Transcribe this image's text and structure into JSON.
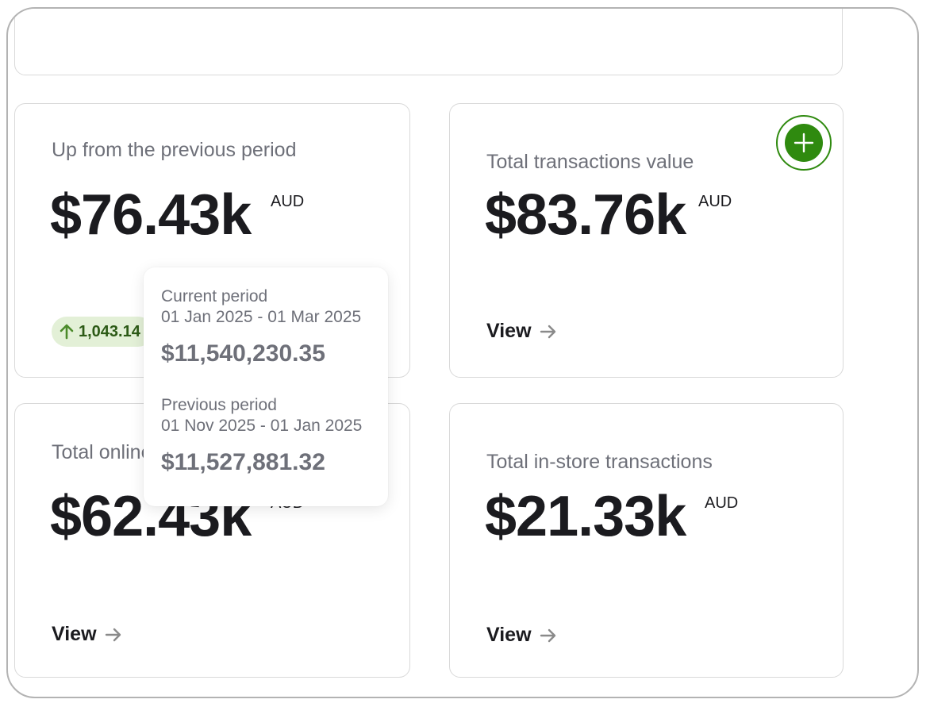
{
  "cards": {
    "up_from_previous": {
      "label": "Up from the previous period",
      "amount": "$76.43k",
      "currency": "AUD",
      "change_badge": "1,043.14"
    },
    "total_transactions": {
      "label": "Total transactions value",
      "amount": "$83.76k",
      "currency": "AUD",
      "view_label": "View"
    },
    "total_online": {
      "label": "Total online transactions",
      "amount": "$62.43k",
      "currency": "AUD",
      "view_label": "View"
    },
    "total_instore": {
      "label": "Total in-store transactions",
      "amount": "$21.33k",
      "currency": "AUD",
      "view_label": "View"
    }
  },
  "tooltip": {
    "current_label": "Current period",
    "current_range": "01 Jan 2025 - 01 Mar 2025",
    "current_value": "$11,540,230.35",
    "previous_label": "Previous period",
    "previous_range": "01 Nov 2025 - 01 Jan 2025",
    "previous_value": "$11,527,881.32"
  },
  "icons": {
    "add": "plus-icon",
    "arrow": "arrow-right-icon",
    "trend": "arrow-up-icon"
  },
  "colors": {
    "accent_green": "#2f8a0f",
    "badge_bg": "#e3f0d7",
    "text_dark": "#1b1b1f",
    "text_muted": "#6e7079"
  }
}
